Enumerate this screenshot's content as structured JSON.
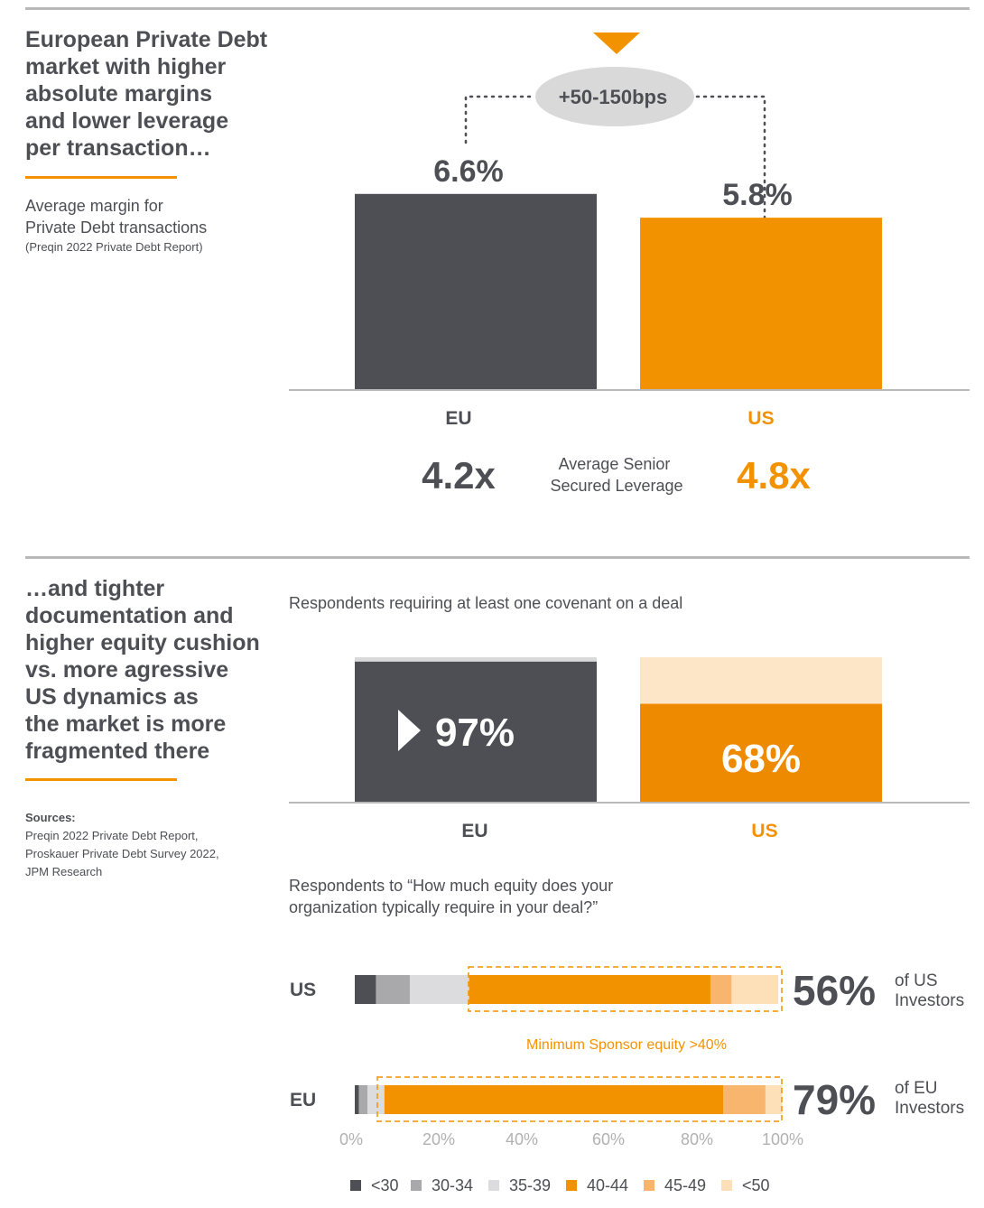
{
  "colors": {
    "dark": "#4d4f55",
    "orange": "#f39200",
    "us_orange_bar": "#ee8a00",
    "gray_rule": "#b9b9b9",
    "cushion_light": "#fde6c8",
    "bubble": "#d9d9d9"
  },
  "section1": {
    "heading": "European Private Debt\nmarket with higher\nabsolute margins\nand lower leverage\nper transaction…",
    "subtitle": "Average margin for\nPrivate Debt transactions",
    "source": "(Preqin 2022 Private Debt Report)",
    "spread_label": "+50-150bps",
    "leverage_label": "Average Senior\nSecured Leverage",
    "eu_leverage": "4.2x",
    "us_leverage": "4.8x"
  },
  "section2": {
    "heading": "…and tighter\ndocumentation and\nhigher equity cushion\nvs. more agressive\nUS dynamics as\nthe market is more\nfragmented there",
    "sources_title": "Sources:",
    "sources": [
      "Preqin 2022 Private Debt Report,",
      "Proskauer Private Debt Survey 2022,",
      "JPM Research"
    ],
    "equity_question": "Respondents to “How much equity does your\norganization typically require in your deal?”",
    "min_equity_note": "Minimum Sponsor equity >40%",
    "us_share": "56%",
    "us_share_label": "of US\nInvestors",
    "eu_share": "79%",
    "eu_share_label": "of EU\nInvestors"
  },
  "chart_data": [
    {
      "type": "bar",
      "categories": [
        "EU",
        "US"
      ],
      "values": [
        6.6,
        5.8
      ],
      "value_labels": [
        "6.6%",
        "5.8%"
      ],
      "ylim": [
        0,
        7.9
      ]
    },
    {
      "type": "bar",
      "title": "Respondents requiring at least one covenant on a deal",
      "categories": [
        "EU",
        "US"
      ],
      "values": [
        97,
        68
      ],
      "value_labels": [
        "97%",
        "68%"
      ],
      "ylim": [
        0,
        100
      ]
    },
    {
      "type": "bar",
      "orientation": "horizontal-stacked",
      "categories": [
        "US",
        "EU"
      ],
      "series": [
        {
          "name": "<30",
          "color": "#4d4f55",
          "values": [
            5,
            1
          ]
        },
        {
          "name": "30-34",
          "color": "#a9a9ab",
          "values": [
            8,
            2
          ]
        },
        {
          "name": "35-39",
          "color": "#dcdcde",
          "values": [
            14,
            4
          ]
        },
        {
          "name": "40-44",
          "color": "#f39200",
          "values": [
            57,
            80
          ]
        },
        {
          "name": "45-49",
          "color": "#f8b56e",
          "values": [
            5,
            10
          ]
        },
        {
          "name": "<50",
          "color": "#fde0b8",
          "values": [
            11,
            4
          ]
        }
      ],
      "xticks": [
        "0%",
        "20%",
        "40%",
        "60%",
        "80%",
        "100%"
      ],
      "xlim": [
        0,
        100
      ]
    }
  ]
}
